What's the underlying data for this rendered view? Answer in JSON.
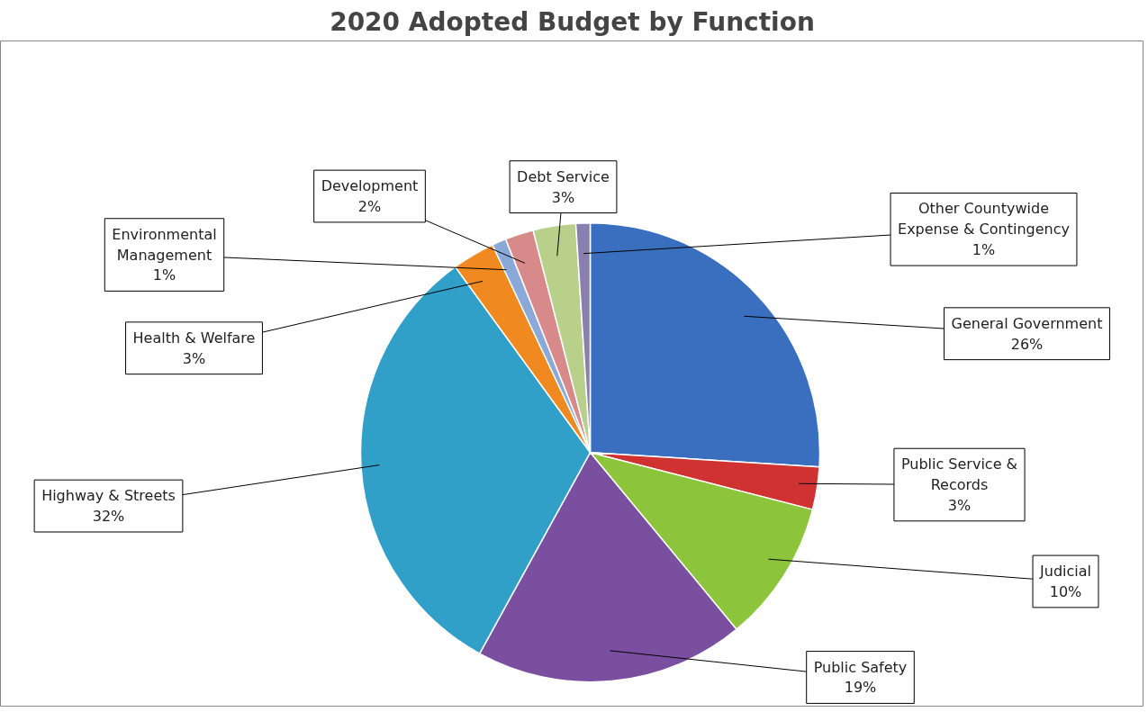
{
  "chart_data": {
    "type": "pie",
    "title": "2020 Adopted Budget by Function",
    "categories": [
      "General Government",
      "Public Service & Records",
      "Judicial",
      "Public Safety",
      "Highway & Streets",
      "Health & Welfare",
      "Environmental Management",
      "Development",
      "Debt Service",
      "Other Countywide Expense & Contingency"
    ],
    "values": [
      26,
      3,
      10,
      19,
      32,
      3,
      1,
      2,
      3,
      1
    ],
    "value_labels": [
      "26%",
      "3%",
      "10%",
      "19%",
      "32%",
      "3%",
      "1%",
      "2%",
      "3%",
      "1%"
    ],
    "colors": [
      "#3a6fc0",
      "#d03232",
      "#8cc43c",
      "#7a4fa0",
      "#31a0c8",
      "#f08a20",
      "#8aa8d8",
      "#d88a8a",
      "#b8d08a",
      "#8a80b0"
    ]
  }
}
